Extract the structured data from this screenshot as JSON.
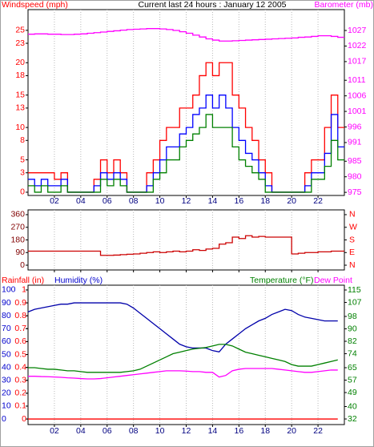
{
  "chart_data": [
    {
      "type": "line",
      "step": true,
      "title": "Current last 24 hours : January 12 2005",
      "ylabel": "Windspeed (mph)",
      "y2label": "Barometer (mb)",
      "ycolor": "#ff0000",
      "y2color": "#ff00ff",
      "grid": true,
      "x": [
        0,
        0.5,
        1,
        1.5,
        2,
        2.5,
        3,
        3.5,
        4,
        4.5,
        5,
        5.5,
        6,
        6.5,
        7,
        7.5,
        8,
        8.5,
        9,
        9.5,
        10,
        10.5,
        11,
        11.5,
        12,
        12.5,
        13,
        13.5,
        14,
        14.5,
        15,
        15.5,
        16,
        16.5,
        17,
        17.5,
        18,
        18.5,
        19,
        19.5,
        20,
        20.5,
        21,
        21.5,
        22,
        22.5,
        23,
        23.5
      ],
      "xlim": [
        0,
        24
      ],
      "xticks": [
        {
          "value": 2,
          "label": "02"
        },
        {
          "value": 4,
          "label": "04"
        },
        {
          "value": 6,
          "label": "06"
        },
        {
          "value": 8,
          "label": "08"
        },
        {
          "value": 10,
          "label": "10"
        },
        {
          "value": 12,
          "label": "12"
        },
        {
          "value": 14,
          "label": "14"
        },
        {
          "value": 16,
          "label": "16"
        },
        {
          "value": 18,
          "label": "18"
        },
        {
          "value": 20,
          "label": "20"
        },
        {
          "value": 22,
          "label": "22"
        }
      ],
      "ylim": [
        -0.5,
        28.2
      ],
      "yticks": [
        0,
        3,
        5,
        8,
        10,
        13,
        15,
        18,
        20,
        23,
        25
      ],
      "y2lim": [
        974,
        1033.7
      ],
      "y2ticks": [
        975,
        980,
        985,
        991,
        996,
        1001,
        1006,
        1011,
        1017,
        1022,
        1027
      ],
      "series": [
        {
          "color": "#ff0000",
          "values": [
            3,
            3,
            3,
            3,
            2,
            3,
            0,
            0,
            0,
            0,
            2,
            5,
            3,
            5,
            3,
            0,
            0,
            0,
            3,
            5,
            8,
            10,
            10,
            13,
            13,
            15,
            18,
            20,
            18,
            20,
            20,
            15,
            13,
            10,
            8,
            5,
            3,
            0,
            0,
            0,
            0,
            0,
            3,
            5,
            5,
            10,
            15,
            10
          ]
        },
        {
          "color": "#0000ff",
          "values": [
            2,
            1,
            2,
            1,
            1,
            2,
            0,
            0,
            0,
            0,
            1,
            3,
            2,
            3,
            2,
            0,
            0,
            0,
            1,
            3,
            5,
            7,
            7,
            9,
            10,
            12,
            13,
            15,
            13,
            15,
            13,
            10,
            8,
            6,
            5,
            3,
            1,
            0,
            0,
            0,
            0,
            0,
            1,
            3,
            3,
            6,
            12,
            7
          ]
        },
        {
          "color": "#008000",
          "values": [
            1,
            0,
            1,
            0,
            0,
            1,
            0,
            0,
            0,
            0,
            0,
            2,
            1,
            2,
            1,
            0,
            0,
            0,
            0,
            2,
            3,
            5,
            5,
            7,
            8,
            9,
            10,
            12,
            10,
            10,
            10,
            7,
            5,
            4,
            3,
            2,
            0,
            0,
            0,
            0,
            0,
            0,
            0,
            2,
            2,
            4,
            8,
            5
          ]
        },
        {
          "color": "#ff00ff",
          "axis": "y2",
          "values": [
            1025.8,
            1025.9,
            1025.9,
            1025.8,
            1025.8,
            1025.7,
            1025.7,
            1025.8,
            1025.9,
            1026.1,
            1026.3,
            1026.5,
            1026.7,
            1026.9,
            1027.1,
            1027.3,
            1027.4,
            1027.5,
            1027.6,
            1027.6,
            1027.5,
            1027.3,
            1027.0,
            1026.6,
            1026.1,
            1025.5,
            1024.9,
            1024.3,
            1023.9,
            1023.6,
            1023.6,
            1023.7,
            1023.8,
            1023.9,
            1024.0,
            1024.1,
            1024.2,
            1024.3,
            1024.4,
            1024.5,
            1024.6,
            1024.8,
            1024.9,
            1025.1,
            1025.3,
            1025.3,
            1025.1,
            1024.8
          ]
        }
      ]
    },
    {
      "type": "line",
      "step": true,
      "ycolor": "#800000",
      "y2color": "#ff0000",
      "grid": true,
      "x": [
        0,
        0.5,
        1,
        1.5,
        2,
        2.5,
        3,
        3.5,
        4,
        4.5,
        5,
        5.5,
        6,
        6.5,
        7,
        7.5,
        8,
        8.5,
        9,
        9.5,
        10,
        10.5,
        11,
        11.5,
        12,
        12.5,
        13,
        13.5,
        14,
        14.5,
        15,
        15.5,
        16,
        16.5,
        17,
        17.5,
        18,
        18.5,
        19,
        19.5,
        20,
        20.5,
        21,
        21.5,
        22,
        22.5,
        23,
        23.5
      ],
      "xlim": [
        0,
        24
      ],
      "xticks": [
        2,
        4,
        6,
        8,
        10,
        12,
        14,
        16,
        18,
        20,
        22
      ],
      "ylim": [
        -34,
        394
      ],
      "yticks": [
        0,
        90,
        180,
        270,
        360
      ],
      "y2lim": [
        -34,
        394
      ],
      "y2ticks": [
        {
          "value": 0,
          "label": "N"
        },
        {
          "value": 90,
          "label": "E"
        },
        {
          "value": 180,
          "label": "S"
        },
        {
          "value": 270,
          "label": "W"
        },
        {
          "value": 360,
          "label": "N"
        }
      ],
      "series": [
        {
          "color": "#cc0000",
          "values": [
            100,
            100,
            100,
            100,
            100,
            100,
            100,
            100,
            100,
            100,
            100,
            70,
            70,
            72,
            75,
            78,
            80,
            85,
            90,
            95,
            90,
            95,
            100,
            95,
            100,
            110,
            105,
            115,
            120,
            150,
            160,
            200,
            190,
            210,
            200,
            205,
            200,
            200,
            200,
            200,
            80,
            85,
            90,
            90,
            95,
            95,
            100,
            100
          ]
        }
      ]
    },
    {
      "type": "line",
      "step": false,
      "ylabel": "Humidity (%)",
      "y2label": "Temperature (°F)",
      "y3label": "Rainfall (in)",
      "ycolor": "#0000cc",
      "y2color": "#008000",
      "y3color": "#ff0000",
      "grid": true,
      "x": [
        0,
        0.5,
        1,
        1.5,
        2,
        2.5,
        3,
        3.5,
        4,
        4.5,
        5,
        5.5,
        6,
        6.5,
        7,
        7.5,
        8,
        8.5,
        9,
        9.5,
        10,
        10.5,
        11,
        11.5,
        12,
        12.5,
        13,
        13.5,
        14,
        14.5,
        15,
        15.5,
        16,
        16.5,
        17,
        17.5,
        18,
        18.5,
        19,
        19.5,
        20,
        20.5,
        21,
        21.5,
        22,
        22.5,
        23,
        23.5
      ],
      "xlim": [
        0,
        24
      ],
      "xticks": [
        {
          "value": 2,
          "label": "02"
        },
        {
          "value": 4,
          "label": "04"
        },
        {
          "value": 6,
          "label": "06"
        },
        {
          "value": 8,
          "label": "08"
        },
        {
          "value": 10,
          "label": "10"
        },
        {
          "value": 12,
          "label": "12"
        },
        {
          "value": 14,
          "label": "14"
        },
        {
          "value": 16,
          "label": "16"
        },
        {
          "value": 18,
          "label": "18"
        },
        {
          "value": 20,
          "label": "20"
        },
        {
          "value": 22,
          "label": "22"
        }
      ],
      "ylim": [
        -4.3,
        103.7
      ],
      "yticks": [
        0,
        10,
        20,
        30,
        40,
        50,
        60,
        70,
        80,
        90,
        100
      ],
      "y2lim": [
        28.4,
        118.1
      ],
      "y2ticks": [
        32,
        40,
        49,
        57,
        65,
        74,
        82,
        90,
        98,
        107,
        115
      ],
      "y3lim": [
        -0.043,
        1.037
      ],
      "y3ticks": [
        0,
        0.1,
        0.2,
        0.3,
        0.4,
        0.5,
        0.6,
        0.7,
        0.8,
        0.9,
        1
      ],
      "series": [
        {
          "color": "#0000aa",
          "values": [
            83,
            85,
            86,
            87,
            88,
            89,
            89,
            90,
            90,
            90,
            90,
            90,
            90,
            90,
            90,
            89,
            86,
            82,
            78,
            74,
            70,
            66,
            62,
            58,
            56,
            55,
            55,
            55,
            53,
            52,
            58,
            62,
            66,
            70,
            73,
            76,
            78,
            81,
            83,
            85,
            84,
            81,
            79,
            78,
            77,
            76,
            76,
            76
          ]
        },
        {
          "color": "#008000",
          "axis": "y2",
          "values": [
            65,
            65,
            64.5,
            64,
            64,
            63.5,
            63,
            63,
            62.5,
            62,
            62,
            62,
            62,
            62,
            62,
            62.5,
            63,
            64,
            66,
            68,
            70,
            72,
            74,
            75,
            76,
            77,
            77.5,
            78,
            79,
            80,
            80,
            79,
            77,
            75,
            74,
            73,
            72,
            71,
            70,
            69,
            67,
            66,
            66,
            66,
            67,
            68,
            69,
            70
          ]
        },
        {
          "name": "Dew Point",
          "color": "#ff00ff",
          "axis": "y2",
          "values": [
            59.5,
            59.5,
            59.3,
            59.2,
            59,
            58.8,
            58.5,
            58.3,
            58,
            57.8,
            57.8,
            58,
            58.5,
            59,
            59.5,
            60,
            60.5,
            61,
            61.5,
            62,
            62.5,
            63,
            63,
            63,
            62.8,
            62.5,
            62.5,
            62,
            62,
            59,
            60,
            63,
            64,
            64.5,
            64.5,
            64.5,
            64.5,
            64.5,
            64,
            63.5,
            63,
            62.5,
            62,
            62,
            62.5,
            63,
            63.5,
            63.5
          ]
        },
        {
          "color": "#ff0000",
          "axis": "y3",
          "values": [
            0,
            0,
            0,
            0,
            0,
            0,
            0,
            0,
            0,
            0,
            0,
            0,
            0,
            0,
            0,
            0,
            0,
            0,
            0,
            0,
            0,
            0,
            0,
            0,
            0,
            0,
            0,
            0,
            0,
            0,
            0,
            0,
            0,
            0,
            0,
            0,
            0,
            0,
            0,
            0,
            0,
            0,
            0,
            0,
            0,
            0,
            0,
            0
          ]
        }
      ]
    }
  ]
}
